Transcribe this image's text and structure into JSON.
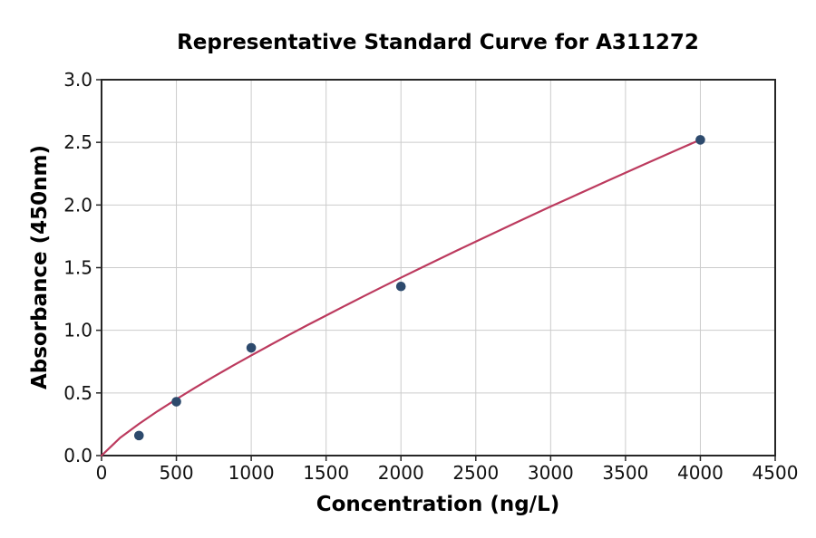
{
  "chart_data": {
    "type": "scatter",
    "title": "Representative Standard Curve for A311272",
    "xlabel": "Concentration (ng/L)",
    "ylabel": "Absorbance (450nm)",
    "xlim": [
      0,
      4500
    ],
    "ylim": [
      0.0,
      3.0
    ],
    "xticks": [
      0,
      500,
      1000,
      1500,
      2000,
      2500,
      3000,
      3500,
      4000,
      4500
    ],
    "xtick_labels": [
      "0",
      "500",
      "1000",
      "1500",
      "2000",
      "2500",
      "3000",
      "3500",
      "4000",
      "4500"
    ],
    "yticks": [
      0.0,
      0.5,
      1.0,
      1.5,
      2.0,
      2.5,
      3.0
    ],
    "ytick_labels": [
      "0.0",
      "0.5",
      "1.0",
      "1.5",
      "2.0",
      "2.5",
      "3.0"
    ],
    "grid": true,
    "legend_position": "none",
    "points": {
      "x": [
        250,
        500,
        1000,
        2000,
        4000
      ],
      "y": [
        0.16,
        0.43,
        0.86,
        1.35,
        2.52
      ]
    },
    "fit_curve": {
      "x": [
        0,
        125,
        250,
        375,
        500,
        625,
        750,
        875,
        1000,
        1125,
        1250,
        1375,
        1500,
        1625,
        1750,
        1875,
        2000,
        2125,
        2250,
        2375,
        2500,
        2625,
        2750,
        2875,
        3000,
        3125,
        3250,
        3375,
        3500,
        3625,
        3750,
        3875,
        4000
      ],
      "y": [
        0.0,
        0.143,
        0.253,
        0.355,
        0.45,
        0.542,
        0.63,
        0.716,
        0.799,
        0.881,
        0.962,
        1.041,
        1.118,
        1.195,
        1.271,
        1.346,
        1.42,
        1.493,
        1.565,
        1.637,
        1.708,
        1.778,
        1.849,
        1.918,
        1.988,
        2.055,
        2.123,
        2.19,
        2.257,
        2.324,
        2.39,
        2.456,
        2.521
      ]
    },
    "colors": {
      "marker": "#2d4a6d",
      "curve": "#bc3a5e",
      "grid": "#cccccc",
      "axis": "#262626",
      "tick_text": "#111111",
      "background": "#ffffff"
    }
  }
}
